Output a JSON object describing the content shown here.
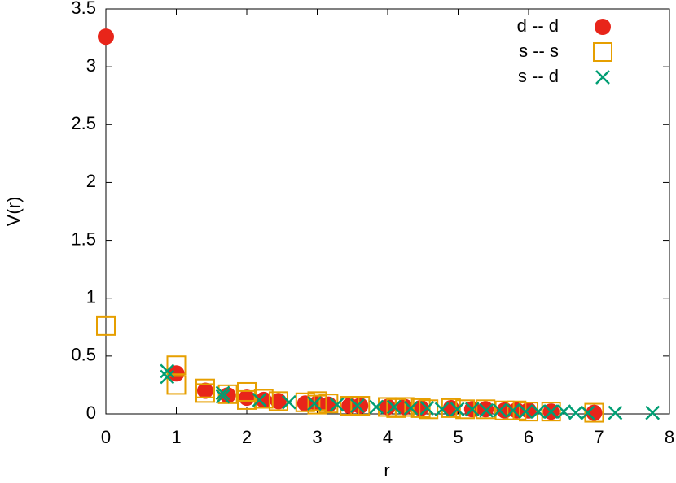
{
  "chart_data": {
    "type": "scatter",
    "xlabel": "r",
    "ylabel": "V(r)",
    "xlim": [
      0,
      8
    ],
    "ylim": [
      0,
      3.5
    ],
    "xticks": [
      0,
      1,
      2,
      3,
      4,
      5,
      6,
      7,
      8
    ],
    "yticks": [
      0,
      0.5,
      1,
      1.5,
      2,
      2.5,
      3,
      3.5
    ],
    "legend": "top-right",
    "series": [
      {
        "name": "d -- d",
        "color": "#e8251a",
        "marker": "filled-circle",
        "x": [
          0,
          1,
          1.41,
          1.73,
          2,
          2.24,
          2.45,
          2.83,
          3,
          3.16,
          3.46,
          3.61,
          4,
          4.24,
          4.47,
          4.9,
          5.2,
          5.39,
          5.66,
          5.83,
          6,
          6.32,
          6.93
        ],
        "values": [
          3.26,
          0.35,
          0.2,
          0.16,
          0.14,
          0.12,
          0.11,
          0.09,
          0.09,
          0.08,
          0.07,
          0.07,
          0.06,
          0.06,
          0.05,
          0.05,
          0.04,
          0.04,
          0.03,
          0.03,
          0.03,
          0.02,
          0.01
        ]
      },
      {
        "name": "s -- s",
        "color": "#e69f00",
        "marker": "open-square",
        "x": [
          0,
          1,
          1,
          1.41,
          1.41,
          1.73,
          2,
          2,
          2.24,
          2.45,
          2.83,
          3,
          3,
          3.16,
          3.46,
          3.61,
          4,
          4.12,
          4.24,
          4.47,
          4.58,
          4.9,
          5.1,
          5.39,
          5.66,
          5.83,
          6,
          6.32,
          6.93
        ],
        "values": [
          0.76,
          0.25,
          0.42,
          0.22,
          0.18,
          0.17,
          0.19,
          0.12,
          0.13,
          0.11,
          0.1,
          0.11,
          0.08,
          0.09,
          0.07,
          0.07,
          0.06,
          0.05,
          0.06,
          0.05,
          0.04,
          0.05,
          0.04,
          0.04,
          0.03,
          0.03,
          0.02,
          0.02,
          0.01
        ]
      },
      {
        "name": "s -- d",
        "color": "#009e73",
        "marker": "cross",
        "x": [
          0.87,
          0.87,
          1.66,
          1.66,
          2.18,
          2.6,
          2.96,
          3.28,
          3.57,
          3.84,
          4.09,
          4.33,
          4.56,
          4.77,
          4.99,
          5.2,
          5.4,
          5.59,
          5.78,
          5.96,
          6.14,
          6.32,
          6.5,
          6.67,
          6.84,
          7.23,
          7.76
        ],
        "values": [
          0.32,
          0.37,
          0.18,
          0.15,
          0.12,
          0.1,
          0.09,
          0.08,
          0.07,
          0.06,
          0.06,
          0.05,
          0.05,
          0.04,
          0.04,
          0.04,
          0.03,
          0.03,
          0.03,
          0.02,
          0.02,
          0.02,
          0.02,
          0.01,
          0.01,
          0.01,
          0.01
        ]
      }
    ]
  }
}
